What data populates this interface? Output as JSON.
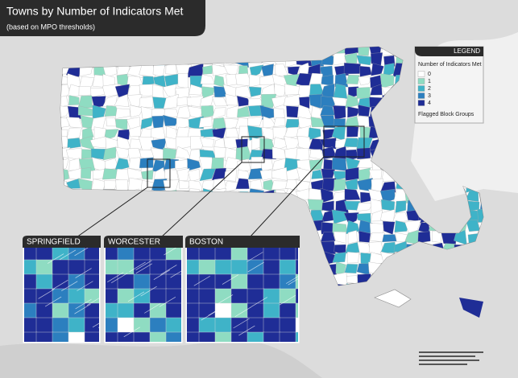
{
  "header": {
    "title": "Towns by Number of Indicators Met",
    "subtitle": "(based on MPO thresholds)"
  },
  "legend": {
    "heading": "LEGEND",
    "title": "Number of Indicators Met",
    "items": [
      {
        "label": "0",
        "color": "#ffffff"
      },
      {
        "label": "1",
        "color": "#8fdcc2"
      },
      {
        "label": "2",
        "color": "#3fb3c8"
      },
      {
        "label": "3",
        "color": "#2c7fbf"
      },
      {
        "label": "4",
        "color": "#1f2d96"
      }
    ],
    "flagged": "Flagged Block Groups"
  },
  "insets": [
    {
      "label": "SPRINGFIELD"
    },
    {
      "label": "WORCESTER"
    },
    {
      "label": "BOSTON"
    }
  ]
}
